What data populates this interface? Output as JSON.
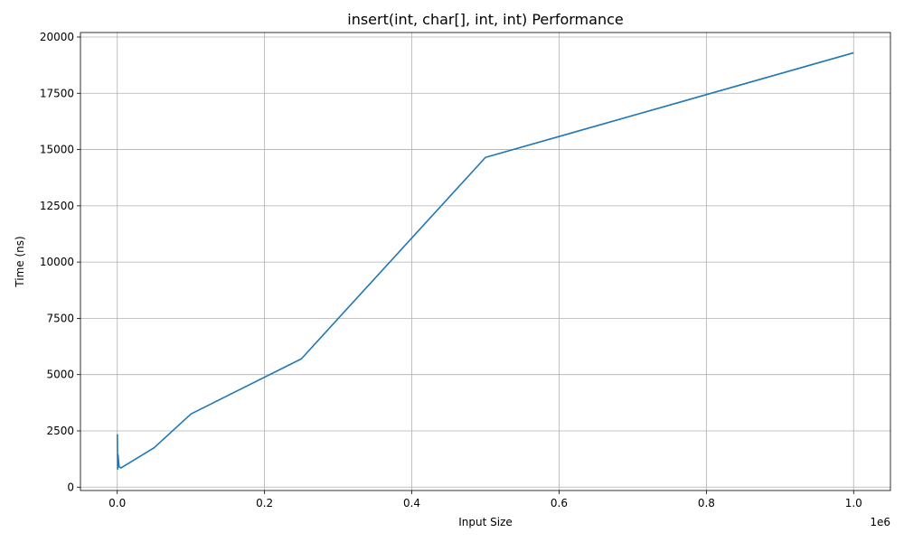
{
  "chart_data": {
    "type": "line",
    "title": "insert(int, char[], int, int) Performance",
    "xlabel": "Input Size",
    "ylabel": "Time (ns)",
    "x_offset_label": "1e6",
    "xlim": [
      -0.05,
      1.05
    ],
    "ylim": [
      -150,
      20200
    ],
    "grid": true,
    "x_ticks": [
      0.0,
      0.2,
      0.4,
      0.6,
      0.8,
      1.0
    ],
    "x_tick_labels": [
      "0.0",
      "0.2",
      "0.4",
      "0.6",
      "0.8",
      "1.0"
    ],
    "y_ticks": [
      0,
      2500,
      5000,
      7500,
      10000,
      12500,
      15000,
      17500,
      20000
    ],
    "y_tick_labels": [
      "0",
      "2500",
      "5000",
      "7500",
      "10000",
      "12500",
      "15000",
      "17500",
      "20000"
    ],
    "series": [
      {
        "color": "#1f77b4",
        "x": [
          0.0001,
          0.0005,
          0.001,
          0.0025,
          0.005,
          0.01,
          0.05,
          0.1,
          0.25,
          0.5,
          1.0
        ],
        "y": [
          2350,
          800,
          1450,
          900,
          850,
          950,
          1750,
          3250,
          5700,
          14650,
          19300
        ]
      }
    ]
  }
}
